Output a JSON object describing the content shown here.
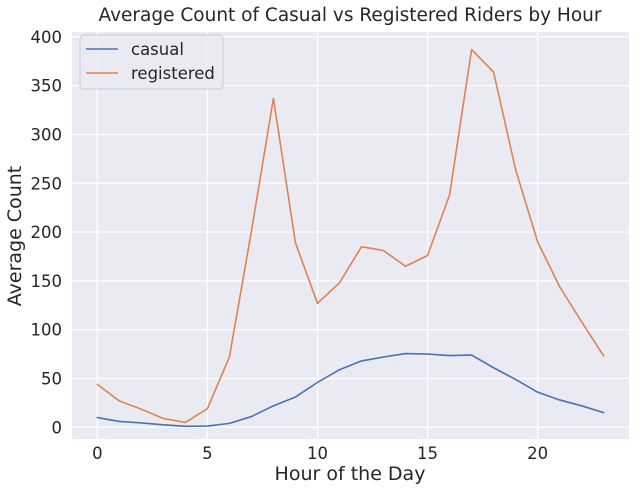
{
  "chart_data": {
    "type": "line",
    "title": "Average Count of Casual vs Registered Riders by Hour",
    "xlabel": "Hour of the Day",
    "ylabel": "Average Count",
    "xlim": [
      -1.15,
      24.15
    ],
    "ylim": [
      -12,
      405
    ],
    "xticks": [
      0,
      5,
      10,
      15,
      20
    ],
    "yticks": [
      0,
      50,
      100,
      150,
      200,
      250,
      300,
      350,
      400
    ],
    "grid": true,
    "legend_position": "top-left",
    "x": [
      0,
      1,
      2,
      3,
      4,
      5,
      6,
      7,
      8,
      9,
      10,
      11,
      12,
      13,
      14,
      15,
      16,
      17,
      18,
      19,
      20,
      21,
      22,
      23
    ],
    "series": [
      {
        "name": "casual",
        "color": "#4c72b0",
        "values": [
          10,
          6,
          4.5,
          2.5,
          1,
          1.3,
          4,
          11,
          22,
          31,
          46,
          59,
          68,
          72,
          75.5,
          75,
          73.5,
          74,
          61,
          49,
          36,
          28,
          22,
          15
        ]
      },
      {
        "name": "registered",
        "color": "#dd8452",
        "values": [
          44,
          27,
          18.5,
          9,
          5,
          19,
          72,
          201,
          337,
          189,
          127,
          148,
          185,
          181,
          165,
          176,
          238,
          387,
          364,
          264,
          190,
          144,
          108,
          73
        ]
      }
    ],
    "colors": {
      "plot_background": "#eaeaf2",
      "grid": "#ffffff",
      "text": "#262626"
    }
  }
}
